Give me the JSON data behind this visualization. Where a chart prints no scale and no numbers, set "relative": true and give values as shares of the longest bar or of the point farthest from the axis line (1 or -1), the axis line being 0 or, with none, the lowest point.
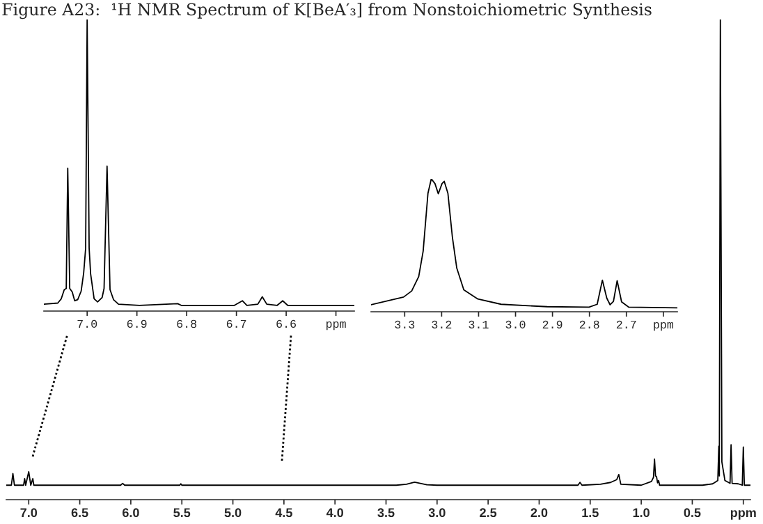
{
  "chart_data": [
    {
      "type": "line",
      "title": "Figure A23:  ¹H NMR Spectrum of K[BeA′₃] from Nonstoichiometric Synthesis",
      "relative": true,
      "xlim": [
        7.22,
        -0.07
      ],
      "xticks": [
        {
          "value": 7.0,
          "label": "7.0"
        },
        6.5,
        {
          "value": 6.0,
          "label": "6.0"
        },
        5.5,
        {
          "value": 5.0,
          "label": "5.0"
        },
        4.5,
        {
          "value": 4.0,
          "label": "4.0"
        },
        3.5,
        {
          "value": 3.0,
          "label": "3.0"
        },
        2.5,
        {
          "value": 2.0,
          "label": "2.0"
        },
        1.5,
        {
          "value": 1.0,
          "label": "1.0"
        },
        0.5,
        {
          "value": 0.0,
          "label": "ppm"
        }
      ],
      "series": [
        {
          "color": "#000000",
          "x": [
            7.22,
            7.17,
            7.155,
            7.14,
            7.05,
            7.04,
            7.03,
            7.0,
            6.98,
            6.96,
            6.95,
            6.1,
            6.08,
            6.06,
            5.52,
            5.51,
            5.5,
            3.4,
            3.3,
            3.22,
            3.1,
            3.0,
            1.62,
            1.6,
            1.58,
            1.4,
            1.3,
            1.24,
            1.22,
            1.2,
            1.0,
            0.9,
            0.88,
            0.87,
            0.86,
            0.85,
            0.84,
            0.83,
            0.82,
            0.4,
            0.3,
            0.25,
            0.24,
            0.235,
            0.225,
            0.21,
            0.18,
            0.13,
            0.12,
            0.11,
            0.05,
            0.01,
            0.0,
            -0.01,
            -0.07
          ],
          "values": [
            0,
            0,
            0.025,
            0,
            0,
            0.014,
            0,
            0.029,
            0,
            0.014,
            0,
            0,
            0.004,
            0,
            0,
            0.003,
            0,
            0,
            0.002,
            0.0065,
            0.001,
            0,
            0,
            0.006,
            0,
            0.002,
            0.006,
            0.012,
            0.023,
            0.002,
            0,
            0.008,
            0.017,
            0.056,
            0.02,
            0.018,
            0.005,
            0.01,
            0,
            0,
            0.003,
            0.01,
            0.084,
            0.02,
            1.0,
            0.05,
            0.01,
            0.004,
            0.087,
            0.004,
            0.003,
            0,
            0.082,
            0,
            0
          ]
        }
      ]
    },
    {
      "type": "line",
      "relative": true,
      "xlim": [
        7.087,
        6.463
      ],
      "xticks": [
        {
          "value": 7.0,
          "label": "7.0"
        },
        6.9,
        6.8,
        6.7,
        6.6,
        {
          "value": 6.5,
          "label": "ppm"
        }
      ],
      "series": [
        {
          "color": "#000000",
          "x": [
            7.087,
            7.059,
            7.052,
            7.046,
            7.042,
            7.039,
            7.035,
            7.03,
            7.025,
            7.019,
            7.012,
            7.007,
            7.003,
            7.0,
            6.996,
            6.993,
            6.986,
            6.979,
            6.97,
            6.966,
            6.96,
            6.954,
            6.947,
            6.937,
            6.895,
            6.818,
            6.811,
            6.704,
            6.688,
            6.679,
            6.657,
            6.648,
            6.639,
            6.618,
            6.607,
            6.597,
            6.463
          ],
          "values": [
            0.004,
            0.008,
            0.023,
            0.055,
            0.059,
            0.48,
            0.059,
            0.047,
            0.016,
            0.02,
            0.05,
            0.113,
            0.2,
            1.0,
            0.2,
            0.11,
            0.023,
            0.012,
            0.027,
            0.059,
            0.487,
            0.055,
            0.02,
            0.004,
            0,
            0.006,
            0,
            0,
            0.016,
            0,
            0.004,
            0.03,
            0.004,
            0,
            0.016,
            0,
            0
          ]
        }
      ]
    },
    {
      "type": "line",
      "relative": true,
      "xlim": [
        3.391,
        2.562
      ],
      "xticks": [
        3.3,
        3.2,
        3.1,
        {
          "value": 3.0,
          "label": "3.0"
        },
        2.9,
        2.8,
        2.7,
        {
          "value": 2.6,
          "label": "ppm"
        }
      ],
      "series": [
        {
          "color": "#000000",
          "x": [
            3.391,
            3.335,
            3.303,
            3.281,
            3.262,
            3.25,
            3.237,
            3.228,
            3.218,
            3.209,
            3.199,
            3.193,
            3.183,
            3.171,
            3.159,
            3.14,
            3.102,
            3.039,
            2.914,
            2.801,
            2.779,
            2.765,
            2.753,
            2.744,
            2.735,
            2.725,
            2.713,
            2.694,
            2.562
          ],
          "values": [
            0.024,
            0.062,
            0.084,
            0.131,
            0.243,
            0.44,
            0.888,
            1.0,
            0.963,
            0.884,
            0.963,
            0.981,
            0.888,
            0.551,
            0.308,
            0.14,
            0.069,
            0.028,
            0.009,
            0.006,
            0.028,
            0.215,
            0.075,
            0.024,
            0.05,
            0.211,
            0.047,
            0.006,
            0
          ]
        }
      ]
    }
  ]
}
